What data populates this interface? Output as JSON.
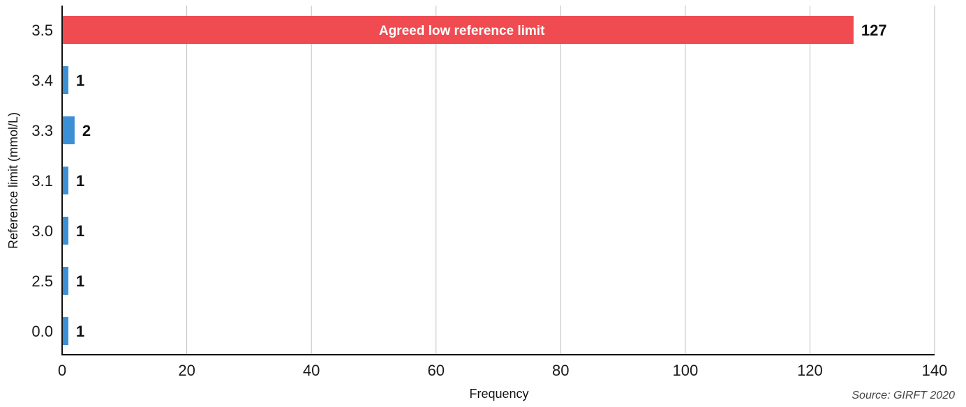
{
  "chart_data": {
    "type": "bar",
    "orientation": "horizontal",
    "categories": [
      "3.5",
      "3.4",
      "3.3",
      "3.1",
      "3.0",
      "2.5",
      "0.0"
    ],
    "values": [
      127,
      1,
      2,
      1,
      1,
      1,
      1
    ],
    "bar_colors": [
      "#f04b51",
      "#3b8fd4",
      "#3b8fd4",
      "#3b8fd4",
      "#3b8fd4",
      "#3b8fd4",
      "#3b8fd4"
    ],
    "highlight_label": "Agreed low reference limit",
    "xlabel": "Frequency",
    "ylabel": "Reference limit (mmol/L)",
    "xlim": [
      0,
      140
    ],
    "xticks": [
      "0",
      "20",
      "40",
      "60",
      "80",
      "100",
      "120",
      "140"
    ],
    "grid": "vertical",
    "source": "Source: GIRFT 2020"
  }
}
